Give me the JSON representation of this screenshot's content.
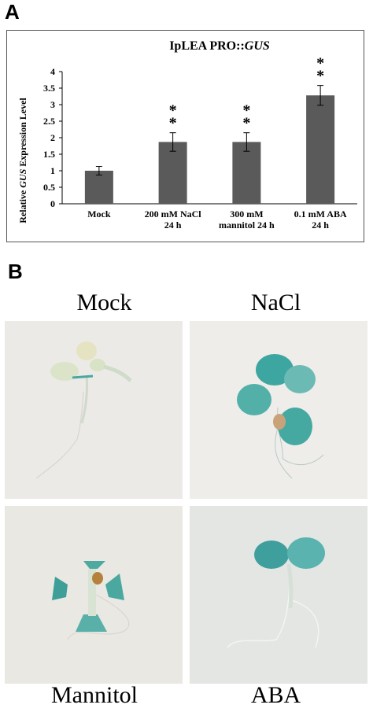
{
  "panels": {
    "a_label": "A",
    "b_label": "B"
  },
  "chart_data": {
    "type": "bar",
    "title_prefix": "IpLEA PRO::",
    "title_italic": "GUS",
    "ylabel_prefix": "Relative ",
    "ylabel_italic": "GUS",
    "ylabel_suffix": " Expression Level",
    "xlabel": "",
    "ylim": [
      0,
      4
    ],
    "yticks": [
      0,
      0.5,
      1,
      1.5,
      2,
      2.5,
      3,
      3.5,
      4
    ],
    "ytick_labels": [
      "0",
      "0.5",
      "1",
      "1.5",
      "2",
      "2.5",
      "3",
      "3.5",
      "4"
    ],
    "grid": false,
    "bar_color": "#5a5a5a",
    "categories": [
      [
        "Mock"
      ],
      [
        "200 mM NaCl",
        "24 h"
      ],
      [
        "300 mM",
        "mannitol 24 h"
      ],
      [
        "0.1 mM ABA",
        "24 h"
      ]
    ],
    "values": [
      1.0,
      1.87,
      1.87,
      3.28
    ],
    "errors": [
      0.13,
      0.28,
      0.28,
      0.3
    ],
    "annotations": [
      "",
      "**",
      "**",
      "**"
    ]
  },
  "photos": {
    "labels": [
      "Mock",
      "NaCl",
      "Mannitol",
      "ABA"
    ],
    "stain_color": "#3aa9a0",
    "background_color": "#e9e7e3"
  }
}
